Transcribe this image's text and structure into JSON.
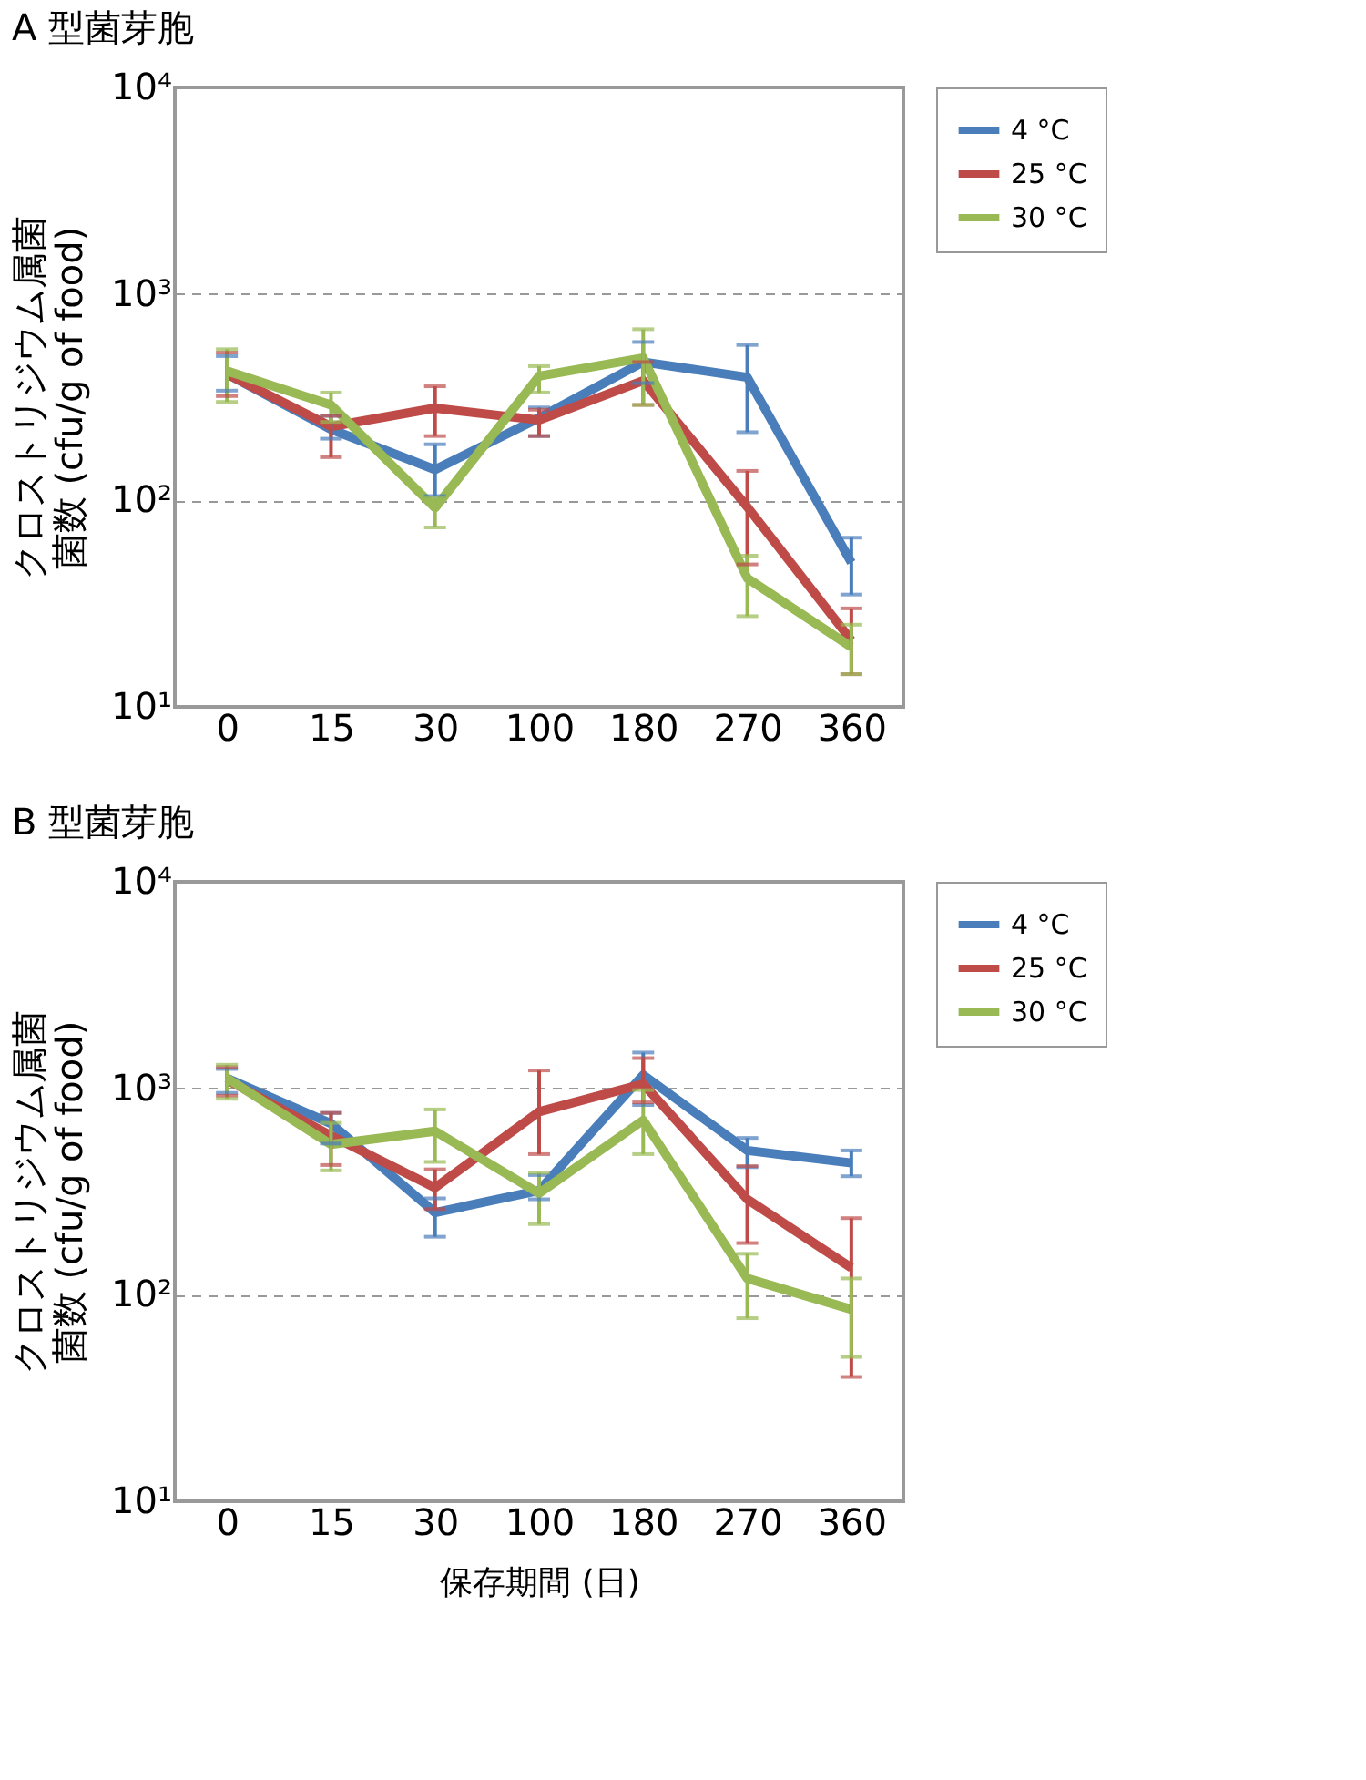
{
  "chart_data": [
    {
      "type": "line",
      "title": "A 型菌芽胞",
      "ylabel": "クロストリジウム属菌菌数 (cfu/g of food)",
      "categories": [
        "0",
        "15",
        "30",
        "100",
        "180",
        "270",
        "360"
      ],
      "log": "y",
      "ylim": [
        10,
        10000
      ],
      "yticks": [
        {
          "value": 10,
          "label": "10¹"
        },
        {
          "value": 100,
          "label": "10²"
        },
        {
          "value": 1000,
          "label": "10³"
        },
        {
          "value": 10000,
          "label": "10⁴"
        }
      ],
      "grid": "y",
      "legend": "top right",
      "marker": "none",
      "line_style": "solid",
      "series": [
        {
          "name": "4 °C",
          "color": "#4a7ebb",
          "values": [
            410,
            221,
            141,
            251,
            468,
            395,
            50
          ],
          "errors": [
            [
              340,
              500
            ],
            [
              199,
              257
            ],
            [
              105,
              187
            ],
            [
              205,
              282
            ],
            [
              370,
              585
            ],
            [
              214,
              566
            ],
            [
              35,
              66
            ]
          ]
        },
        {
          "name": "25 °C",
          "color": "#be4b48",
          "values": [
            410,
            228,
            280,
            245,
            380,
            93,
            21
          ],
          "errors": [
            [
              320,
              520
            ],
            [
              162,
              257
            ],
            [
              205,
              357
            ],
            [
              205,
              275
            ],
            [
              290,
              468
            ],
            [
              49,
              139
            ],
            [
              14.4,
              30
            ]
          ]
        },
        {
          "name": "30 °C",
          "color": "#98b954",
          "values": [
            424,
            290,
            92,
            400,
            490,
            42,
            19.5
          ],
          "errors": [
            [
              300,
              540
            ],
            [
              240,
              333
            ],
            [
              74,
              103
            ],
            [
              333,
              447
            ],
            [
              290,
              675
            ],
            [
              27.5,
              54
            ],
            [
              14.4,
              25
            ]
          ]
        }
      ]
    },
    {
      "type": "line",
      "title": "B 型菌芽胞",
      "ylabel": "クロストリジウム属菌菌数 (cfu/g of food)",
      "xlabel": "保存期間 (日)",
      "categories": [
        "0",
        "15",
        "30",
        "100",
        "180",
        "270",
        "360"
      ],
      "log": "y",
      "ylim": [
        10,
        10000
      ],
      "yticks": [
        {
          "value": 10,
          "label": "10¹"
        },
        {
          "value": 100,
          "label": "10²"
        },
        {
          "value": 1000,
          "label": "10³"
        },
        {
          "value": 10000,
          "label": "10⁴"
        }
      ],
      "grid": "y",
      "legend": "top right",
      "marker": "none",
      "line_style": "solid",
      "series": [
        {
          "name": "4 °C",
          "color": "#4a7ebb",
          "values": [
            1120,
            675,
            250,
            320,
            1160,
            500,
            435
          ],
          "errors": [
            [
              950,
              1240
            ],
            [
              540,
              760
            ],
            [
              191,
              293
            ],
            [
              290,
              380
            ],
            [
              830,
              1490
            ],
            [
              415,
              575
            ],
            [
              375,
              500
            ]
          ]
        },
        {
          "name": "25 °C",
          "color": "#be4b48",
          "values": [
            1100,
            590,
            330,
            770,
            1050,
            290,
            135
          ],
          "errors": [
            [
              920,
              1270
            ],
            [
              425,
              760
            ],
            [
              260,
              405
            ],
            [
              480,
              1220
            ],
            [
              855,
              1400
            ],
            [
              178,
              420
            ],
            [
              40,
              235
            ]
          ]
        },
        {
          "name": "30 °C",
          "color": "#98b954",
          "values": [
            1120,
            535,
            620,
            310,
            700,
            120,
            85
          ],
          "errors": [
            [
              890,
              1300
            ],
            [
              400,
              680
            ],
            [
              440,
              790
            ],
            [
              220,
              390
            ],
            [
              480,
              980
            ],
            [
              77,
              158
            ],
            [
              50,
              120
            ]
          ]
        }
      ]
    }
  ]
}
